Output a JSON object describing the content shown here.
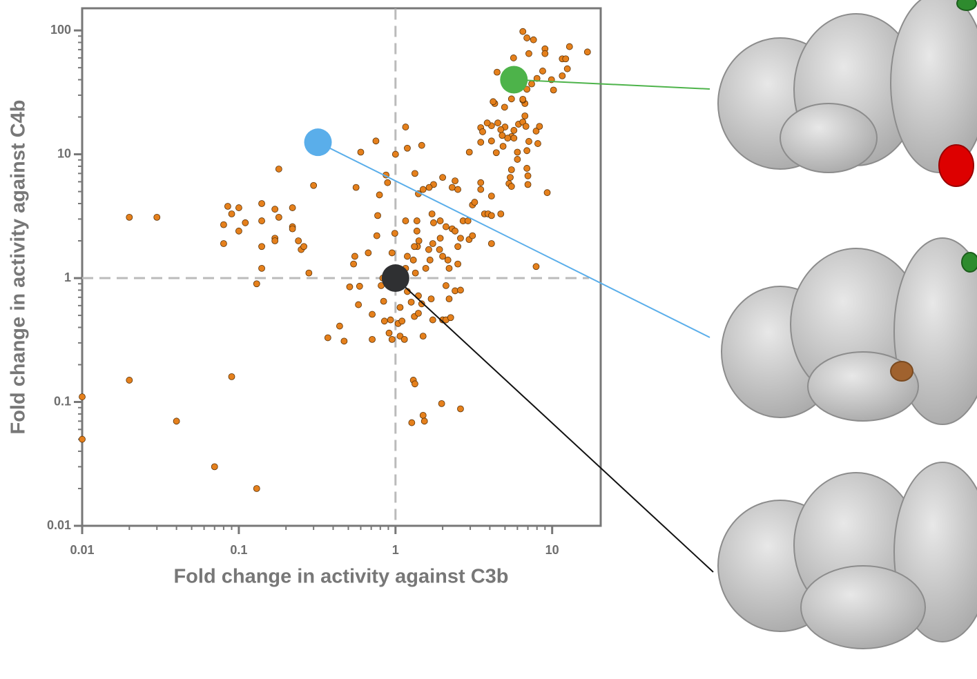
{
  "chart_data": {
    "type": "scatter",
    "x_label": "Fold change in activity against C3b",
    "y_label": "Fold change in activity against C4b",
    "xscale": "log",
    "yscale": "log",
    "xlim": [
      0.01,
      20
    ],
    "ylim": [
      0.01,
      150
    ],
    "xticks": [
      0.01,
      0.1,
      1,
      10
    ],
    "yticks": [
      0.01,
      0.1,
      1,
      10,
      100
    ],
    "reference_lines": {
      "x": 1,
      "y": 1
    },
    "color": "#e5801c",
    "x": [
      0.01,
      0.01,
      0.02,
      0.04,
      0.07,
      0.13,
      0.09,
      0.02,
      0.03,
      0.085,
      0.1,
      0.09,
      0.08,
      0.1,
      0.11,
      0.08,
      0.14,
      0.14,
      0.17,
      0.18,
      0.17,
      0.17,
      0.14,
      0.18,
      0.22,
      0.22,
      0.22,
      0.24,
      0.25,
      0.26,
      0.14,
      0.13,
      0.28,
      0.3,
      0.37,
      0.44,
      0.47,
      0.51,
      0.59,
      0.54,
      0.55,
      0.58,
      0.71,
      0.71,
      0.67,
      0.81,
      0.84,
      0.83,
      0.85,
      0.91,
      0.95,
      0.93,
      1.04,
      1.07,
      1.14,
      0.95,
      0.99,
      0.76,
      0.77,
      0.79,
      0.87,
      0.89,
      1.0,
      1.16,
      1.47,
      1.19,
      0.6,
      0.75,
      0.56,
      1.33,
      1.16,
      1.37,
      1.37,
      1.41,
      1.38,
      1.32,
      1.3,
      1.19,
      1.16,
      1.34,
      1.56,
      1.66,
      1.63,
      1.73,
      1.75,
      1.71,
      1.93,
      1.93,
      1.91,
      2.0,
      2.16,
      2.2,
      2.1,
      2.4,
      2.1,
      2.3,
      2.4,
      2.6,
      2.5,
      2.5,
      2.7,
      2.9,
      2.95,
      3.1,
      3.1,
      3.2,
      3.5,
      3.5,
      3.7,
      3.9,
      4.1,
      4.1,
      4.7,
      4.1,
      2.3,
      2.4,
      2.0,
      1.75,
      1.64,
      1.5,
      1.4,
      2.5,
      1.07,
      1.1,
      1.19,
      1.26,
      1.4,
      1.47,
      1.32,
      1.4,
      1.5,
      1.73,
      2.0,
      2.1,
      2.25,
      1.69,
      2.2,
      2.6,
      1.3,
      1.33,
      1.27,
      1.5,
      1.53,
      1.97,
      2.6,
      4.97,
      5.5,
      6.0,
      6.0,
      5.7,
      5.7,
      6.1,
      6.5,
      6.8,
      6.7,
      6.7,
      6.9,
      6.5,
      6.5,
      5.5,
      4.3,
      4.2,
      4.45,
      5.67,
      6.5,
      6.9,
      7.6,
      7.1,
      9.0,
      12.9,
      16.8,
      11.6,
      12.2,
      12.5,
      11.6,
      9.9,
      10.2,
      8.7,
      8.0,
      7.4,
      9.0,
      7.9,
      8.3,
      8.1,
      7.1,
      6.9,
      7.0,
      7.0,
      6.9,
      5.5,
      5.4,
      5.3,
      5.5,
      5.0,
      4.7,
      4.5,
      4.1,
      3.85,
      3.5,
      3.6,
      3.5,
      2.96,
      4.1,
      4.4,
      4.86,
      5.2,
      4.8,
      9.3,
      7.9
    ],
    "y": [
      0.11,
      0.05,
      0.15,
      0.07,
      0.03,
      0.02,
      0.16,
      3.1,
      3.1,
      3.8,
      3.7,
      3.3,
      2.7,
      2.4,
      2.8,
      1.9,
      4.0,
      2.9,
      3.6,
      3.1,
      2.1,
      2.0,
      1.8,
      7.6,
      3.7,
      2.6,
      2.5,
      2.0,
      1.7,
      1.8,
      1.2,
      0.9,
      1.1,
      5.6,
      0.33,
      0.41,
      0.31,
      0.85,
      0.86,
      1.3,
      1.5,
      0.61,
      0.51,
      0.32,
      1.6,
      0.87,
      0.65,
      1.0,
      0.45,
      0.36,
      0.32,
      0.46,
      0.43,
      0.34,
      0.32,
      1.6,
      2.3,
      2.2,
      3.2,
      4.7,
      6.8,
      5.9,
      10,
      16.6,
      11.8,
      11.2,
      10.4,
      12.8,
      5.4,
      7.0,
      2.9,
      2.9,
      2.4,
      2.0,
      1.8,
      1.8,
      1.4,
      1.5,
      1.2,
      1.1,
      1.2,
      1.4,
      1.7,
      1.9,
      2.8,
      3.3,
      2.9,
      2.1,
      1.7,
      1.5,
      1.4,
      1.2,
      0.87,
      0.79,
      2.6,
      2.5,
      2.4,
      2.1,
      1.8,
      1.3,
      2.9,
      2.9,
      2.05,
      2.2,
      3.9,
      4.1,
      5.2,
      5.9,
      3.3,
      3.3,
      3.2,
      1.9,
      3.3,
      4.6,
      5.4,
      6.1,
      6.5,
      5.7,
      5.4,
      5.2,
      4.8,
      5.2,
      0.58,
      0.45,
      0.78,
      0.64,
      0.72,
      0.62,
      0.49,
      0.52,
      0.34,
      0.46,
      0.46,
      0.46,
      0.48,
      0.68,
      0.68,
      0.8,
      0.15,
      0.14,
      0.068,
      0.078,
      0.07,
      0.097,
      0.088,
      24,
      13.9,
      9.1,
      10.4,
      13.5,
      15.6,
      17.5,
      18.2,
      16.8,
      20.4,
      25.7,
      33.5,
      27.4,
      27.8,
      28,
      25.7,
      26.6,
      46,
      60,
      98,
      87,
      84,
      65,
      71,
      74,
      67,
      59,
      59,
      49,
      43,
      40,
      33,
      47,
      41,
      37,
      65,
      15.4,
      16.8,
      12.2,
      12.7,
      10.7,
      6.7,
      5.7,
      7.7,
      7.5,
      6.5,
      5.8,
      5.5,
      16.6,
      15.8,
      17.9,
      17.0,
      17.9,
      16.4,
      15.2,
      12.5,
      10.4,
      12.8,
      10.3,
      11.6,
      13.5,
      14.2,
      4.9,
      1.24
    ],
    "highlights": [
      {
        "x": 5.7,
        "y": 40,
        "color": "#4db34a"
      },
      {
        "x": 0.32,
        "y": 12.5,
        "color": "#5aaeea"
      },
      {
        "x": 1,
        "y": 1,
        "color": "#2f3032"
      }
    ]
  }
}
